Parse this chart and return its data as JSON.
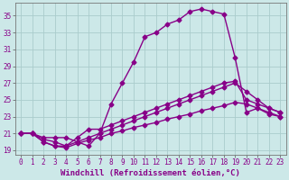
{
  "xlabel": "Windchill (Refroidissement éolien,°C)",
  "background_color": "#cce8e8",
  "grid_color": "#aacccc",
  "line_color": "#880088",
  "xlim": [
    -0.5,
    23.5
  ],
  "ylim": [
    18.5,
    36.5
  ],
  "yticks": [
    19,
    21,
    23,
    25,
    27,
    29,
    31,
    33,
    35
  ],
  "xticks": [
    0,
    1,
    2,
    3,
    4,
    5,
    6,
    7,
    8,
    9,
    10,
    11,
    12,
    13,
    14,
    15,
    16,
    17,
    18,
    19,
    20,
    21,
    22,
    23
  ],
  "lines": [
    {
      "x": [
        0,
        1,
        2,
        3,
        4,
        5,
        6,
        7,
        8,
        9,
        10,
        11,
        12,
        13,
        14,
        15,
        16,
        17,
        18,
        19,
        20,
        21,
        22,
        23
      ],
      "y": [
        21,
        21,
        20.5,
        20.5,
        20.5,
        20,
        19.5,
        21,
        24.5,
        27.0,
        29.5,
        32.5,
        33.0,
        34.0,
        34.5,
        35.5,
        35.8,
        35.5,
        35.2,
        30.0,
        23.5,
        24.0,
        23.5,
        23.0
      ]
    },
    {
      "x": [
        0,
        1,
        2,
        3,
        4,
        5,
        6,
        7,
        8,
        9,
        10,
        11,
        12,
        13,
        14,
        15,
        16,
        17,
        18,
        19,
        20,
        21,
        22,
        23
      ],
      "y": [
        21,
        21,
        20.3,
        20.0,
        19.5,
        20.5,
        21.5,
        21.5,
        22.0,
        22.5,
        23.0,
        23.5,
        24.0,
        24.5,
        25.0,
        25.5,
        26.0,
        26.5,
        27.0,
        27.2,
        25.0,
        24.5,
        24.0,
        23.5
      ]
    },
    {
      "x": [
        0,
        1,
        2,
        3,
        4,
        5,
        6,
        7,
        8,
        9,
        10,
        11,
        12,
        13,
        14,
        15,
        16,
        17,
        18,
        19,
        20,
        21,
        22,
        23
      ],
      "y": [
        21,
        21,
        20.0,
        19.5,
        19.5,
        20.0,
        20.5,
        21.0,
        21.5,
        22.0,
        22.5,
        23.0,
        23.5,
        24.0,
        24.5,
        25.0,
        25.5,
        26.0,
        26.5,
        27.0,
        26.0,
        25.0,
        24.0,
        23.5
      ]
    },
    {
      "x": [
        0,
        1,
        2,
        3,
        4,
        5,
        6,
        7,
        8,
        9,
        10,
        11,
        12,
        13,
        14,
        15,
        16,
        17,
        18,
        19,
        20,
        21,
        22,
        23
      ],
      "y": [
        21,
        21,
        20.0,
        19.5,
        19.3,
        19.8,
        20.2,
        20.5,
        21.0,
        21.3,
        21.7,
        22.0,
        22.3,
        22.7,
        23.0,
        23.3,
        23.7,
        24.0,
        24.3,
        24.7,
        24.5,
        24.0,
        23.3,
        23.0
      ]
    }
  ],
  "marker": "D",
  "markersize": 2.5,
  "linewidth": 1.0,
  "tick_fontsize": 5.5,
  "label_fontsize": 6.5
}
